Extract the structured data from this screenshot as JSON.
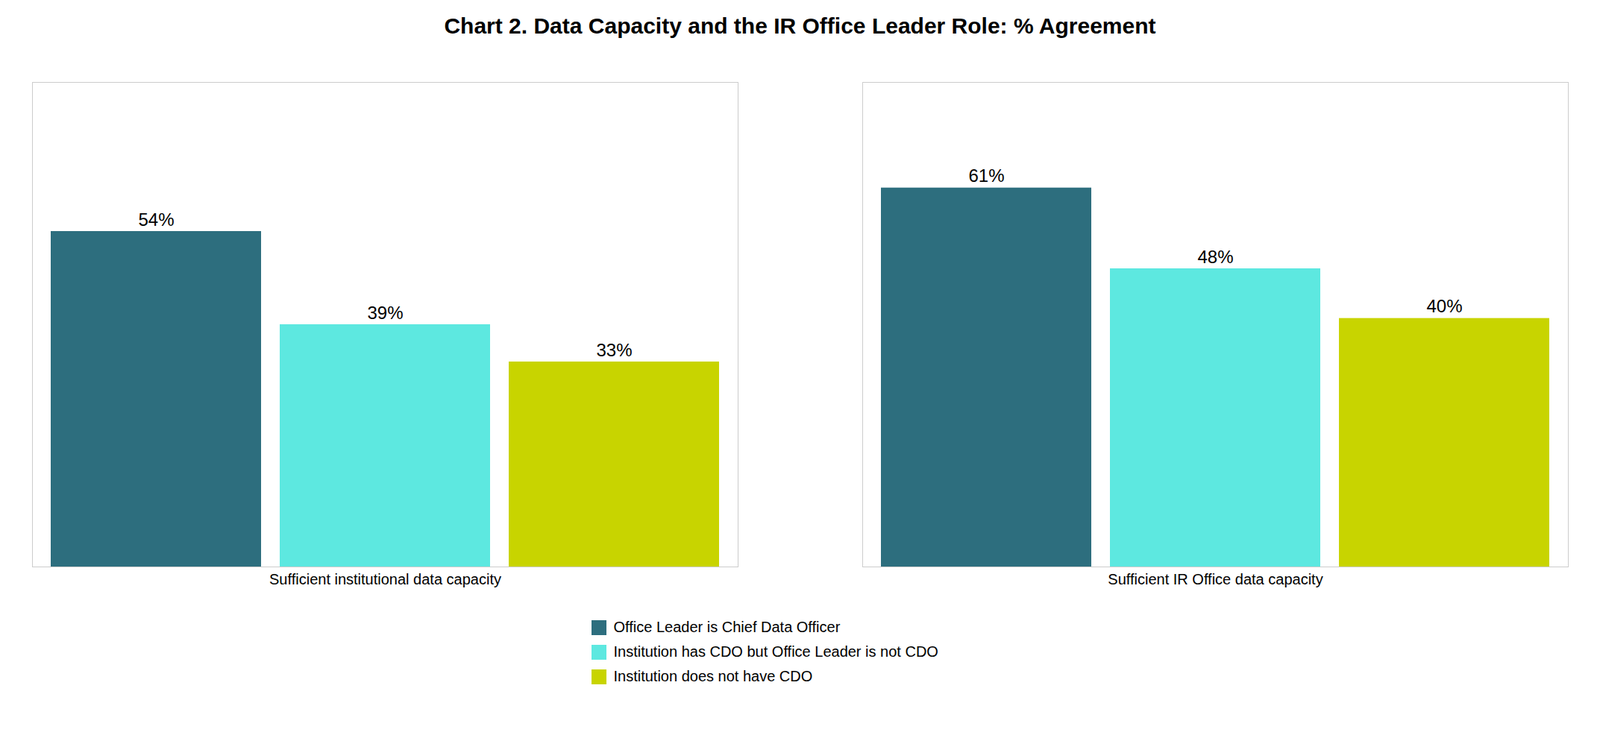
{
  "chart_data": {
    "type": "bar",
    "title": "Chart 2. Data Capacity and the IR Office Leader Role: % Agreement",
    "categories": [
      "Sufficient institutional data capacity",
      "Sufficient IR Office data capacity"
    ],
    "series": [
      {
        "name": "Office Leader is Chief Data Officer",
        "color": "#2d6e7e",
        "values": [
          54,
          61
        ],
        "value_labels": [
          "54%",
          "61%"
        ]
      },
      {
        "name": "Institution has CDO but Office Leader is not CDO",
        "color": "#5de8e0",
        "values": [
          39,
          48
        ],
        "value_labels": [
          "39%",
          "48%"
        ]
      },
      {
        "name": "Institution does not have CDO",
        "color": "#c8d400",
        "values": [
          33,
          40
        ],
        "value_labels": [
          "33%",
          "40%"
        ]
      }
    ],
    "ylim": [
      0,
      78
    ],
    "data_labels": true,
    "tick_labels": "x",
    "grid": false,
    "legend": "bottom"
  }
}
